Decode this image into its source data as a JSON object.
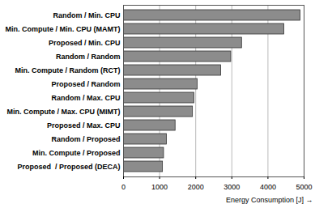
{
  "chart_data": {
    "type": "bar",
    "orientation": "horizontal",
    "x_label": "Energy Consumption [J]",
    "categories": [
      "Random / Min. CPU",
      "Min. Compute / Min. CPU (MAMT)",
      "Proposed / Min. CPU",
      "Random / Random",
      "Min. Compute / Random (RCT)",
      "Proposed / Random",
      "Random / Max. CPU",
      "Min. Compute / Max. CPU (MIMT)",
      "Proposed / Max. CPU",
      "Random / Proposed",
      "Min. Compute / Proposed",
      "Proposed  / Proposed (DECA)"
    ],
    "values": [
      4900,
      4450,
      3280,
      2980,
      2700,
      2050,
      1960,
      1920,
      1440,
      1200,
      1120,
      1090
    ],
    "color": "#8c8c8c",
    "xlim": [
      0,
      5000
    ],
    "xticks": [
      0,
      1000,
      2000,
      3000,
      4000,
      5000
    ],
    "grid": true
  }
}
